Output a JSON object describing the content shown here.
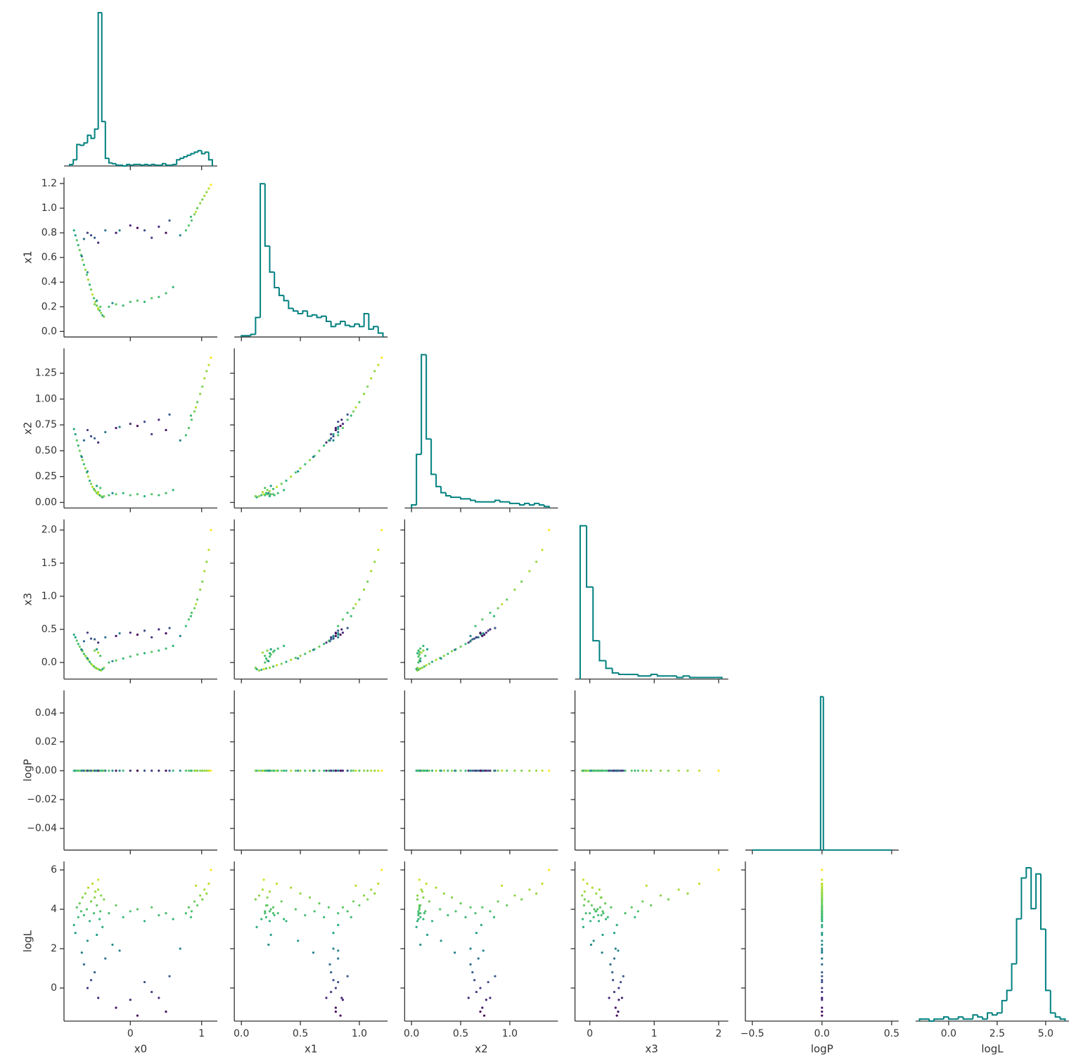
{
  "chart_data": {
    "type": "corner",
    "colormap": "viridis",
    "hist_color": "#00807f",
    "columns": [
      {
        "label": "x0",
        "xlim": [
          -0.93,
          1.22
        ],
        "xticks": [
          0,
          1
        ],
        "values": [
          -0.79,
          -0.77,
          -0.75,
          -0.73,
          -0.71,
          -0.69,
          -0.67,
          -0.65,
          -0.63,
          -0.61,
          -0.59,
          -0.57,
          -0.55,
          -0.53,
          -0.51,
          -0.49,
          -0.47,
          -0.45,
          -0.43,
          -0.41,
          -0.39,
          -0.37,
          -0.45,
          -0.5,
          -0.42,
          -0.47,
          -0.6,
          -0.68,
          -0.3,
          -0.2,
          -0.1,
          0,
          0.1,
          0.2,
          0.3,
          0.4,
          0.5,
          0.6,
          -0.25,
          0.78,
          0.82,
          0.86,
          0.9,
          0.94,
          0.98,
          1.01,
          1.04,
          1.07,
          1.1,
          1.13,
          0.85,
          0.92,
          -0.6,
          -0.5,
          -0.45,
          -0.35,
          -0.2,
          0,
          0.1,
          0.2,
          0.4,
          0.5,
          0.55,
          -0.65,
          -0.55,
          0.7,
          -0.15,
          0.3
        ],
        "hist": {
          "bins": [
            -0.85,
            -0.8,
            -0.75,
            -0.7,
            -0.65,
            -0.6,
            -0.55,
            -0.5,
            -0.45,
            -0.4,
            -0.35,
            -0.3,
            -0.25,
            -0.2,
            -0.15,
            -0.1,
            -0.05,
            0,
            0.05,
            0.1,
            0.15,
            0.2,
            0.25,
            0.3,
            0.35,
            0.4,
            0.45,
            0.5,
            0.55,
            0.6,
            0.65,
            0.7,
            0.75,
            0.8,
            0.85,
            0.9,
            0.95,
            1.0,
            1.05,
            1.1,
            1.15
          ],
          "counts": [
            2,
            8,
            28,
            27,
            30,
            40,
            36,
            48,
            200,
            58,
            10,
            4,
            3,
            1,
            1,
            0,
            2,
            1,
            2,
            2,
            1,
            2,
            1,
            2,
            1,
            1,
            3,
            1,
            1,
            2,
            8,
            10,
            12,
            14,
            16,
            18,
            20,
            16,
            18,
            8
          ]
        }
      },
      {
        "label": "x1",
        "xlim": [
          -0.06,
          1.24
        ],
        "xticks": [
          {
            "value": 0,
            "label": "0.0"
          },
          0.5,
          {
            "value": 1,
            "label": "1.0"
          }
        ],
        "ylim": [
          -0.045,
          1.25
        ],
        "yticks": [
          {
            "value": 0,
            "label": "0.0"
          },
          0.2,
          0.4,
          0.6,
          0.8,
          {
            "value": 1,
            "label": "1.0"
          },
          1.2
        ],
        "values": [
          0.82,
          0.78,
          0.74,
          0.7,
          0.66,
          0.62,
          0.58,
          0.54,
          0.5,
          0.46,
          0.42,
          0.38,
          0.34,
          0.3,
          0.27,
          0.24,
          0.21,
          0.19,
          0.17,
          0.15,
          0.13,
          0.12,
          0.18,
          0.22,
          0.2,
          0.25,
          0.48,
          0.61,
          0.2,
          0.22,
          0.21,
          0.24,
          0.25,
          0.24,
          0.27,
          0.28,
          0.31,
          0.36,
          0.23,
          0.82,
          0.86,
          0.9,
          0.95,
          1.0,
          1.04,
          1.07,
          1.1,
          1.13,
          1.16,
          1.19,
          0.93,
          0.97,
          0.8,
          0.76,
          0.72,
          0.82,
          0.8,
          0.86,
          0.84,
          0.82,
          0.85,
          0.8,
          0.9,
          0.75,
          0.78,
          0.78,
          0.82,
          0.76
        ],
        "hist": {
          "bins": [
            0,
            0.04,
            0.08,
            0.12,
            0.16,
            0.2,
            0.24,
            0.28,
            0.32,
            0.36,
            0.4,
            0.44,
            0.48,
            0.52,
            0.56,
            0.6,
            0.64,
            0.68,
            0.72,
            0.76,
            0.8,
            0.84,
            0.88,
            0.92,
            0.96,
            1.0,
            1.04,
            1.08,
            1.12,
            1.16,
            1.2
          ],
          "counts": [
            1,
            1,
            2,
            15,
            118,
            70,
            50,
            38,
            32,
            28,
            22,
            20,
            18,
            20,
            16,
            17,
            15,
            16,
            12,
            8,
            10,
            12,
            9,
            8,
            10,
            8,
            18,
            6,
            8,
            3
          ]
        }
      },
      {
        "label": "x2",
        "xlim": [
          -0.07,
          1.49
        ],
        "xticks": [
          {
            "value": 0,
            "label": "0.0"
          },
          0.5,
          {
            "value": 1,
            "label": "1.0"
          }
        ],
        "ylim": [
          -0.054,
          1.49
        ],
        "yticks": [
          {
            "value": 0,
            "label": "0.00"
          },
          0.25,
          {
            "value": 0.5,
            "label": "0.50"
          },
          0.75,
          {
            "value": 1,
            "label": "1.00"
          },
          1.25
        ],
        "values": [
          0.71,
          0.66,
          0.6,
          0.55,
          0.5,
          0.45,
          0.41,
          0.37,
          0.33,
          0.29,
          0.25,
          0.21,
          0.18,
          0.15,
          0.13,
          0.11,
          0.09,
          0.08,
          0.07,
          0.06,
          0.05,
          0.06,
          0.1,
          0.12,
          0.14,
          0.16,
          0.3,
          0.44,
          0.07,
          0.08,
          0.09,
          0.07,
          0.08,
          0.06,
          0.08,
          0.07,
          0.09,
          0.12,
          0.09,
          0.65,
          0.72,
          0.8,
          0.88,
          0.97,
          1.05,
          1.12,
          1.2,
          1.27,
          1.33,
          1.4,
          0.84,
          0.92,
          0.7,
          0.62,
          0.58,
          0.68,
          0.72,
          0.76,
          0.74,
          0.78,
          0.8,
          0.7,
          0.85,
          0.6,
          0.64,
          0.6,
          0.73,
          0.66
        ],
        "hist": {
          "bins": [
            0,
            0.05,
            0.1,
            0.15,
            0.2,
            0.25,
            0.3,
            0.35,
            0.4,
            0.45,
            0.5,
            0.55,
            0.6,
            0.65,
            0.7,
            0.75,
            0.8,
            0.85,
            0.9,
            0.95,
            1.0,
            1.05,
            1.1,
            1.15,
            1.2,
            1.25,
            1.3,
            1.35,
            1.4
          ],
          "counts": [
            2,
            35,
            100,
            45,
            22,
            14,
            10,
            8,
            7,
            7,
            6,
            6,
            5,
            4,
            4,
            4,
            4,
            5,
            4,
            4,
            3,
            3,
            2,
            3,
            2,
            3,
            2,
            1
          ]
        }
      },
      {
        "label": "x3",
        "xlim": [
          -0.23,
          2.15
        ],
        "xticks": [
          0,
          1,
          2
        ],
        "ylim": [
          -0.25,
          2.16
        ],
        "yticks": [
          {
            "value": 0,
            "label": "0.0"
          },
          0.5,
          {
            "value": 1,
            "label": "1.0"
          },
          1.5,
          {
            "value": 2,
            "label": "2.0"
          }
        ],
        "values": [
          0.42,
          0.38,
          0.33,
          0.28,
          0.24,
          0.2,
          0.17,
          0.13,
          0.1,
          0.07,
          0.04,
          0.01,
          -0.02,
          -0.04,
          -0.06,
          -0.08,
          -0.09,
          -0.1,
          -0.11,
          -0.12,
          -0.1,
          -0.08,
          0.15,
          0.18,
          0.1,
          0.2,
          0.06,
          0.19,
          0,
          0.03,
          0.06,
          0.09,
          0.12,
          0.14,
          0.16,
          0.18,
          0.21,
          0.25,
          0.02,
          0.55,
          0.65,
          0.75,
          0.82,
          0.95,
          1.1,
          1.22,
          1.38,
          1.52,
          1.7,
          2.0,
          0.7,
          0.88,
          0.45,
          0.35,
          0.3,
          0.38,
          0.4,
          0.45,
          0.42,
          0.48,
          0.5,
          0.44,
          0.52,
          0.32,
          0.36,
          0.4,
          0.44,
          0.38
        ],
        "hist": {
          "bins": [
            -0.15,
            -0.05,
            0.05,
            0.15,
            0.25,
            0.35,
            0.45,
            0.55,
            0.65,
            0.75,
            0.85,
            0.95,
            1.05,
            1.15,
            1.25,
            1.35,
            1.45,
            1.55,
            1.65,
            1.75,
            1.85,
            1.95,
            2.05
          ],
          "counts": [
            100,
            60,
            25,
            12,
            7,
            4,
            3,
            3,
            3,
            2,
            2,
            3,
            2,
            2,
            2,
            1,
            2,
            1,
            1,
            1,
            1,
            1
          ]
        }
      },
      {
        "label": "logP",
        "xlim": [
          -0.55,
          0.55
        ],
        "xticks": [
          {
            "value": -0.5,
            "label": "−0.5"
          },
          {
            "value": 0,
            "label": "0.0"
          },
          0.5
        ],
        "ylim": [
          -0.055,
          0.0556
        ],
        "yticks": [
          {
            "value": -0.04,
            "label": "−0.04"
          },
          {
            "value": -0.02,
            "label": "−0.02"
          },
          {
            "value": 0,
            "label": "0.00"
          },
          0.02,
          0.04
        ],
        "values": [
          0,
          0,
          0,
          0,
          0,
          0,
          0,
          0,
          0,
          0,
          0,
          0,
          0,
          0,
          0,
          0,
          0,
          0,
          0,
          0,
          0,
          0,
          0,
          0,
          0,
          0,
          0,
          0,
          0,
          0,
          0,
          0,
          0,
          0,
          0,
          0,
          0,
          0,
          0,
          0,
          0,
          0,
          0,
          0,
          0,
          0,
          0,
          0,
          0,
          0,
          0,
          0,
          0,
          0,
          0,
          0,
          0,
          0,
          0,
          0,
          0,
          0,
          0,
          0,
          0,
          0,
          0,
          0
        ],
        "hist": {
          "bins": [
            -0.5,
            -0.01,
            0.01,
            0.5
          ],
          "counts": [
            0,
            100,
            0
          ]
        }
      },
      {
        "label": "logL",
        "xlim": [
          -1.7,
          6.2
        ],
        "xticks": [
          {
            "value": 0,
            "label": "0.0"
          },
          2.5,
          {
            "value": 5,
            "label": "5.0"
          }
        ],
        "ylim": [
          -1.68,
          6.43
        ],
        "yticks": [
          0,
          2,
          4,
          6
        ],
        "values": [
          3.2,
          2.8,
          4.1,
          3.6,
          4.3,
          3.9,
          4.6,
          3.7,
          4.8,
          4.0,
          5.1,
          3.4,
          4.4,
          5.3,
          3.8,
          4.9,
          4.2,
          5.5,
          3.5,
          4.7,
          3.1,
          4.5,
          5.0,
          4.6,
          3.9,
          2.7,
          2.4,
          1.8,
          3.8,
          4.2,
          3.6,
          3.9,
          4.0,
          3.4,
          4.1,
          3.7,
          3.8,
          3.5,
          2.2,
          3.8,
          4.1,
          3.9,
          4.4,
          4.2,
          4.7,
          4.5,
          5.0,
          4.8,
          5.3,
          6.0,
          3.6,
          5.2,
          0,
          0.8,
          -0.5,
          1.5,
          -1.0,
          -0.6,
          -1.4,
          0.3,
          -0.5,
          -1.2,
          0.6,
          1.2,
          0.4,
          2.0,
          1.9,
          -0.2
        ],
        "hist": {
          "bins": [
            -1.5,
            -1.25,
            -1,
            -0.75,
            -0.5,
            -0.25,
            0,
            0.25,
            0.5,
            0.75,
            1,
            1.25,
            1.5,
            1.75,
            2,
            2.25,
            2.5,
            2.75,
            3,
            3.25,
            3.5,
            3.75,
            4,
            4.25,
            4.5,
            4.75,
            5,
            5.25,
            5.5,
            5.75,
            6
          ],
          "counts": [
            1,
            1,
            0,
            1,
            1,
            2,
            1,
            1,
            2,
            1,
            1,
            3,
            2,
            1,
            4,
            3,
            4,
            10,
            15,
            28,
            50,
            70,
            75,
            55,
            72,
            45,
            15,
            4,
            2,
            1
          ]
        }
      }
    ]
  }
}
